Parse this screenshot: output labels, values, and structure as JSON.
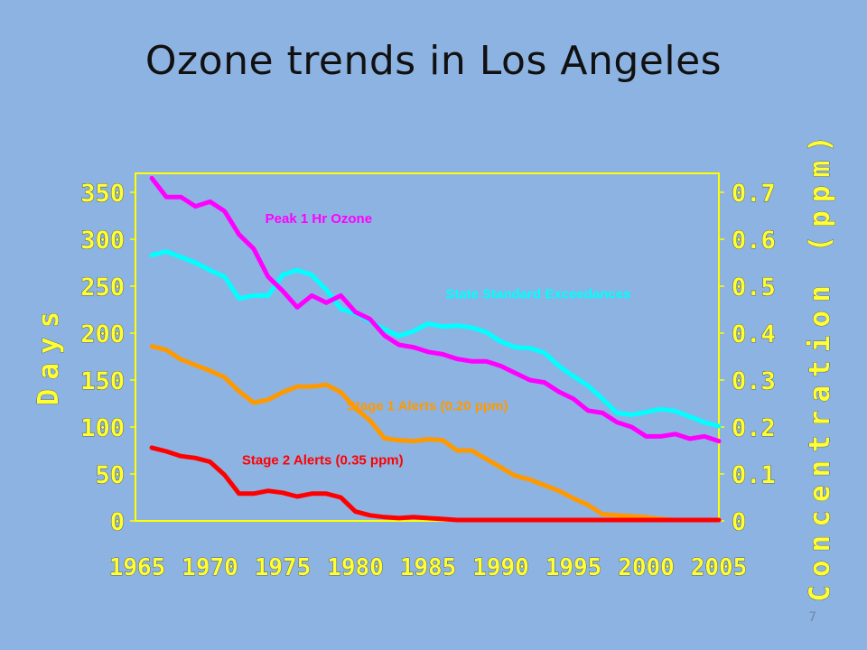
{
  "slide": {
    "title": "Ozone trends in Los Angeles",
    "page_number": "7",
    "background_color": "#8DB3E2"
  },
  "chart_data": {
    "type": "line",
    "x": [
      1966,
      1967,
      1968,
      1969,
      1970,
      1971,
      1972,
      1973,
      1974,
      1975,
      1976,
      1977,
      1978,
      1979,
      1980,
      1981,
      1982,
      1983,
      1984,
      1985,
      1986,
      1987,
      1988,
      1989,
      1990,
      1991,
      1992,
      1993,
      1994,
      1995,
      1996,
      1997,
      1998,
      1999,
      2000,
      2001,
      2002,
      2003,
      2004,
      2005
    ],
    "xlim": [
      1965,
      2005
    ],
    "xticks": [
      "1965",
      "1970",
      "1975",
      "1980",
      "1985",
      "1990",
      "1995",
      "2000",
      "2005"
    ],
    "ylabel": "Days",
    "ylim": [
      0,
      350
    ],
    "yticks": [
      "0",
      "50",
      "100",
      "150",
      "200",
      "250",
      "300",
      "350"
    ],
    "y2label": "Concentration (ppm)",
    "y2lim": [
      0,
      0.7
    ],
    "y2ticks": [
      "0",
      "0.1",
      "0.2",
      "0.3",
      "0.4",
      "0.5",
      "0.6",
      "0.7"
    ],
    "axis_color": "#FFFF33",
    "plot_border_color": "#FFFF00",
    "grid": false,
    "legend": "none",
    "series": [
      {
        "name": "State Standard Exceedances",
        "axis": "left",
        "color": "#00FFFF",
        "values": [
          283,
          287,
          281,
          275,
          267,
          260,
          237,
          240,
          240,
          262,
          267,
          262,
          246,
          226,
          221,
          213,
          204,
          197,
          202,
          210,
          207,
          208,
          206,
          201,
          191,
          185,
          184,
          179,
          165,
          154,
          144,
          130,
          115,
          113,
          116,
          119,
          117,
          111,
          105,
          101
        ]
      },
      {
        "name": "Peak 1 Hr Ozone",
        "axis": "right",
        "color": "#FF00FF",
        "values": [
          0.73,
          0.69,
          0.69,
          0.67,
          0.68,
          0.66,
          0.61,
          0.58,
          0.52,
          0.49,
          0.455,
          0.48,
          0.465,
          0.48,
          0.445,
          0.43,
          0.395,
          0.375,
          0.37,
          0.36,
          0.355,
          0.345,
          0.34,
          0.34,
          0.33,
          0.315,
          0.3,
          0.295,
          0.275,
          0.26,
          0.235,
          0.23,
          0.21,
          0.2,
          0.18,
          0.18,
          0.185,
          0.175,
          0.18,
          0.17
        ]
      },
      {
        "name": "Stage 1 Alerts (0.20 ppm)",
        "axis": "left",
        "color": "#FF9900",
        "values": [
          186,
          182,
          172,
          166,
          160,
          153,
          138,
          126,
          129,
          137,
          143,
          143,
          145,
          137,
          120,
          107,
          88,
          86,
          85,
          87,
          86,
          75,
          75,
          66,
          57,
          48,
          44,
          38,
          32,
          24,
          17,
          7,
          6,
          5,
          4,
          2,
          1,
          1,
          1,
          1
        ]
      },
      {
        "name": "Stage 2 Alerts (0.35 ppm)",
        "axis": "left",
        "color": "#FF0000",
        "values": [
          78,
          74,
          69,
          67,
          63,
          49,
          29,
          29,
          32,
          30,
          26,
          29,
          29,
          25,
          10,
          6,
          4,
          3,
          4,
          3,
          2,
          1,
          1,
          1,
          1,
          1,
          1,
          1,
          1,
          1,
          1,
          1,
          1,
          1,
          1,
          1,
          1,
          1,
          1,
          1
        ]
      }
    ],
    "annotations": [
      {
        "text": "Peak 1 Hr Ozone",
        "color": "#FF00FF",
        "anchor_x": 1973.8,
        "anchor_y": 317.5
      },
      {
        "text": "State Standard Exceedances",
        "color": "#00FFFF",
        "anchor_x": 1986.2,
        "anchor_y": 237
      },
      {
        "text": "Stage 1 Alerts (0.20 ppm)",
        "color": "#FF9900",
        "anchor_x": 1979.4,
        "anchor_y": 118
      },
      {
        "text": "Stage 2 Alerts (0.35 ppm)",
        "color": "#FF0000",
        "anchor_x": 1972.2,
        "anchor_y": 60
      }
    ]
  }
}
